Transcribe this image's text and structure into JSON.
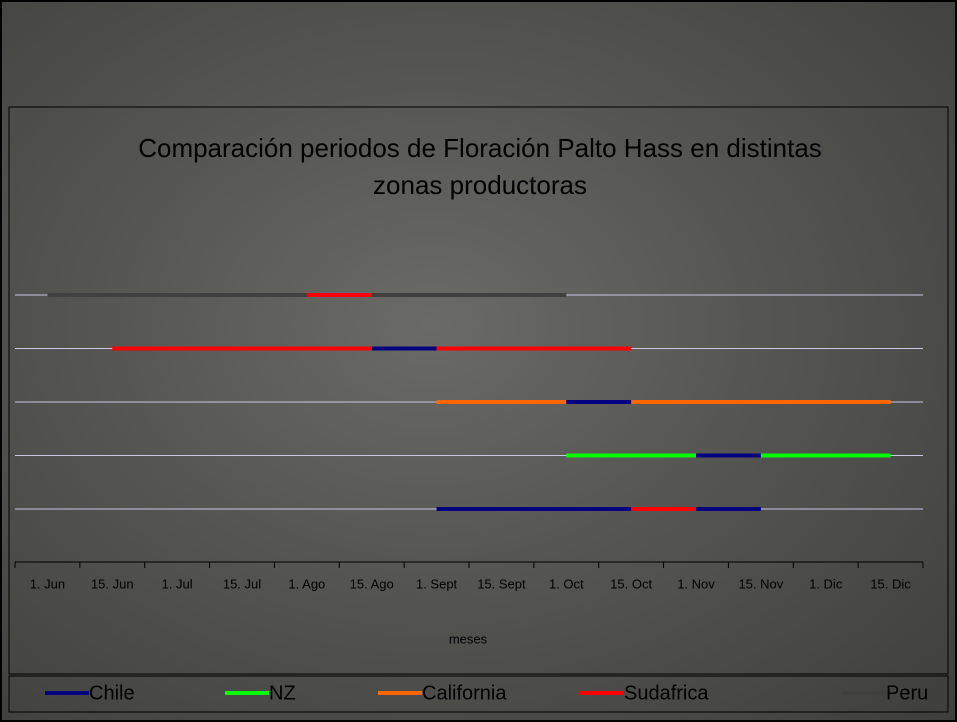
{
  "chart_data": {
    "type": "gantt",
    "title": "Comparación periodos de Floración Palto Hass en distintas zonas productoras",
    "x_label": "meses",
    "categories": [
      "1. Jun",
      "15. Jun",
      "1. Jul",
      "15. Jul",
      "1. Ago",
      "15. Ago",
      "1. Sept",
      "15. Sept",
      "1. Oct",
      "15. Oct",
      "1. Nov",
      "15. Nov",
      "1. Dic",
      "15. Dic"
    ],
    "series": [
      {
        "name": "Chile",
        "color": "#000080",
        "bars": [
          {
            "row": 1,
            "start": 5,
            "end": 6
          },
          {
            "row": 2,
            "start": 8,
            "end": 9
          },
          {
            "row": 3,
            "start": 10,
            "end": 11
          },
          {
            "row": 4,
            "start": 6,
            "end": 9
          },
          {
            "row": 4,
            "start": 10,
            "end": 11
          }
        ]
      },
      {
        "name": "NZ",
        "color": "#00ff00",
        "bars": [
          {
            "row": 3,
            "start": 8,
            "end": 10
          },
          {
            "row": 3,
            "start": 11,
            "end": 13
          }
        ]
      },
      {
        "name": "California",
        "color": "#ff6600",
        "bars": [
          {
            "row": 2,
            "start": 6,
            "end": 8
          },
          {
            "row": 2,
            "start": 9,
            "end": 13
          }
        ]
      },
      {
        "name": "Sudafrica",
        "color": "#ff0000",
        "bars": [
          {
            "row": 0,
            "start": 4,
            "end": 5
          },
          {
            "row": 1,
            "start": 1,
            "end": 5
          },
          {
            "row": 1,
            "start": 6,
            "end": 9
          },
          {
            "row": 4,
            "start": 9,
            "end": 10
          }
        ]
      },
      {
        "name": "Peru",
        "color": "#404040",
        "bars": [
          {
            "row": 0,
            "start": 0,
            "end": 8
          }
        ]
      }
    ]
  }
}
